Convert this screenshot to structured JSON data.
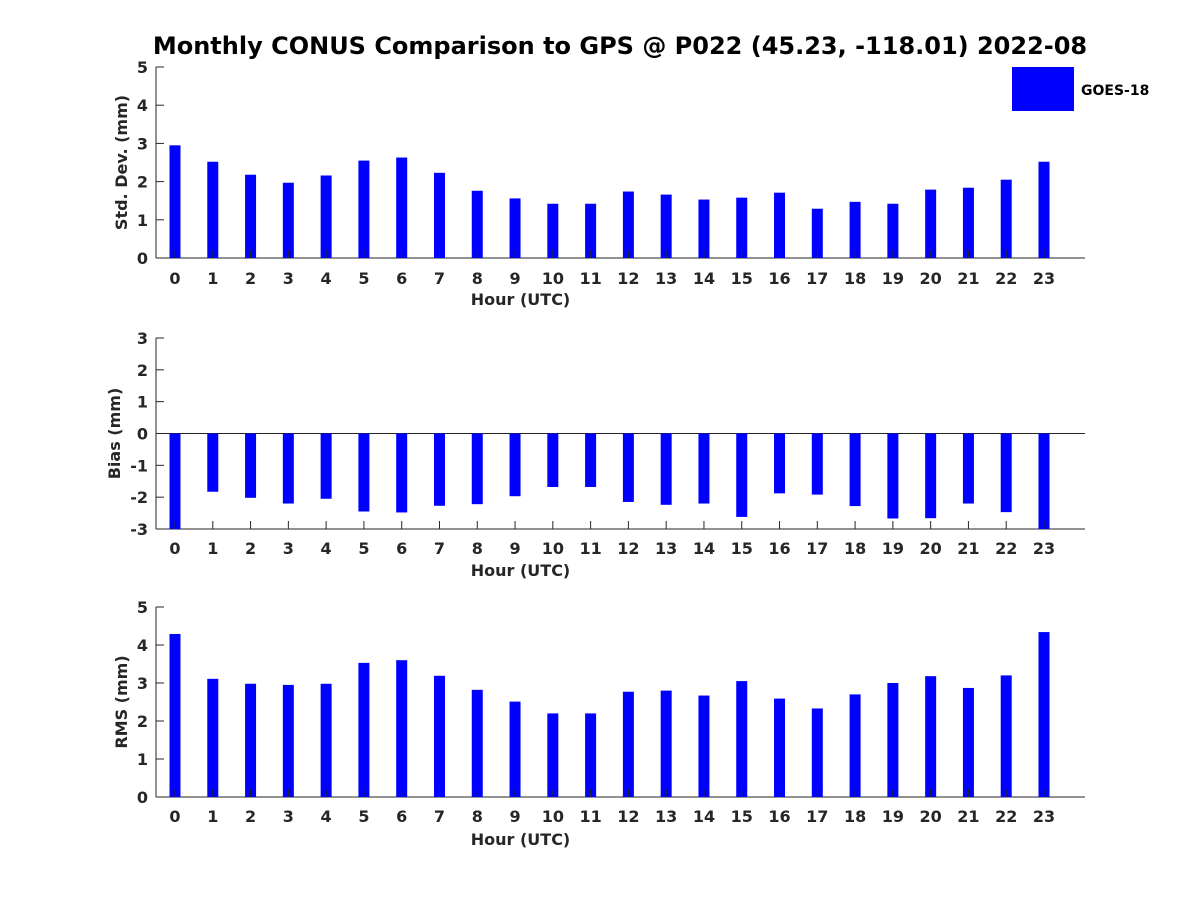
{
  "chart_data": {
    "type": "bar",
    "title": "Monthly CONUS Comparison to GPS @ P022 (45.23, -118.01) 2022-08",
    "legend": {
      "position": "top-right",
      "entries": [
        "GOES-18"
      ]
    },
    "series_color": "#0000ff",
    "categories": [
      "0",
      "1",
      "2",
      "3",
      "4",
      "5",
      "6",
      "7",
      "8",
      "9",
      "10",
      "11",
      "12",
      "13",
      "14",
      "15",
      "16",
      "17",
      "18",
      "19",
      "20",
      "21",
      "22",
      "23"
    ],
    "panels": [
      {
        "id": "std",
        "ylabel": "Std. Dev. (mm)",
        "xlabel": "Hour (UTC)",
        "ylim": [
          0,
          5
        ],
        "yticks": [
          0,
          1,
          2,
          3,
          4,
          5
        ],
        "series": [
          {
            "name": "GOES-18",
            "values": [
              2.95,
              2.52,
              2.18,
              1.97,
              2.16,
              2.55,
              2.63,
              2.23,
              1.76,
              1.56,
              1.42,
              1.42,
              1.74,
              1.66,
              1.53,
              1.58,
              1.71,
              1.29,
              1.47,
              1.42,
              1.79,
              1.84,
              2.05,
              2.52
            ]
          }
        ]
      },
      {
        "id": "bias",
        "ylabel": "Bias (mm)",
        "xlabel": "Hour (UTC)",
        "ylim": [
          -3,
          3
        ],
        "yticks": [
          -3,
          -2,
          -1,
          0,
          1,
          2,
          3
        ],
        "series": [
          {
            "name": "GOES-18",
            "values": [
              -3.0,
              -1.83,
              -2.02,
              -2.2,
              -2.05,
              -2.45,
              -2.48,
              -2.27,
              -2.22,
              -1.97,
              -1.68,
              -1.68,
              -2.15,
              -2.24,
              -2.2,
              -2.62,
              -1.88,
              -1.92,
              -2.28,
              -2.67,
              -2.66,
              -2.2,
              -2.47,
              -3.0
            ]
          }
        ]
      },
      {
        "id": "rms",
        "ylabel": "RMS (mm)",
        "xlabel": "Hour (UTC)",
        "ylim": [
          0,
          5
        ],
        "yticks": [
          0,
          1,
          2,
          3,
          4,
          5
        ],
        "series": [
          {
            "name": "GOES-18",
            "values": [
              4.29,
              3.11,
              2.98,
              2.95,
              2.98,
              3.53,
              3.6,
              3.19,
              2.82,
              2.51,
              2.2,
              2.2,
              2.77,
              2.8,
              2.67,
              3.05,
              2.59,
              2.33,
              2.7,
              3.0,
              3.18,
              2.87,
              3.2,
              4.34
            ]
          }
        ]
      }
    ]
  }
}
